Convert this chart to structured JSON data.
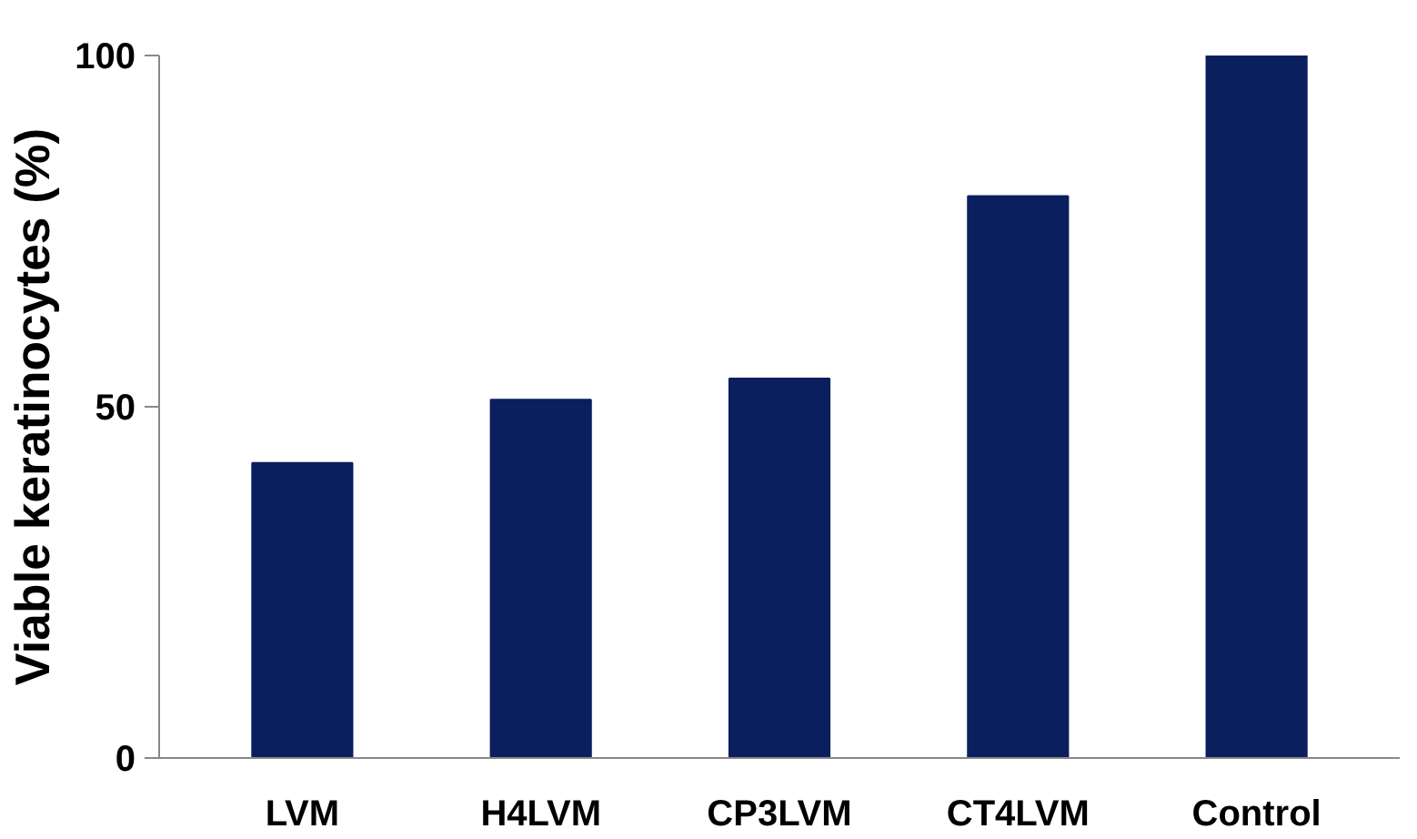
{
  "chart_data": {
    "type": "bar",
    "ylabel": "Viable keratinocytes (%)",
    "categories": [
      "LVM",
      "H4LVM",
      "CP3LVM",
      "CT4LVM",
      "Control"
    ],
    "values": [
      42,
      51,
      54,
      80,
      100
    ],
    "color": "#0b1f5e",
    "ylim": [
      0,
      100
    ],
    "yticks": [
      0,
      50,
      100
    ],
    "grid": false
  }
}
